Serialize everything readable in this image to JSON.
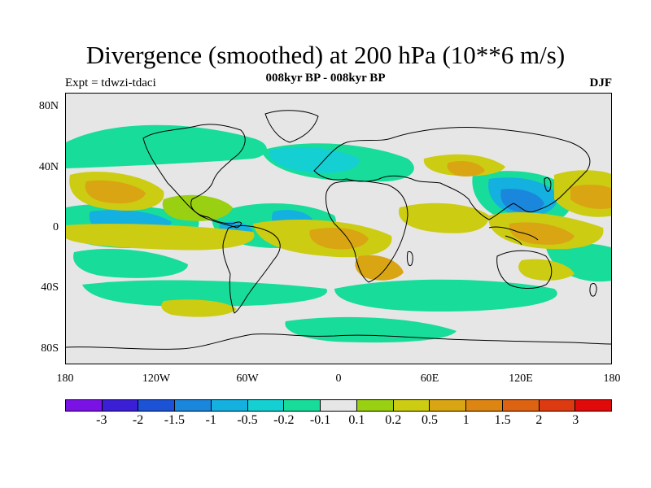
{
  "title": "Divergence (smoothed) at 200 hPa (10**6 m/s)",
  "subtitle": "008kyr BP - 008kyr BP",
  "expt": "Expt = tdwzi-tdaci",
  "season": "DJF",
  "map": {
    "lat_labels": [
      "80N",
      "40N",
      "0",
      "40S",
      "80S"
    ],
    "lon_labels": [
      "180",
      "120W",
      "60W",
      "0",
      "60E",
      "120E",
      "180"
    ],
    "background_color": "#e6e6e6",
    "coast_color": "#000000"
  },
  "colorbar": {
    "colors": [
      "#7a12e6",
      "#3a1fd6",
      "#1b52d6",
      "#1b87dc",
      "#14b0e0",
      "#14d0d2",
      "#18dc9a",
      "#e6e6e6",
      "#9ad012",
      "#cccc12",
      "#d9a512",
      "#dc8512",
      "#dd6212",
      "#de3a12",
      "#e10a0a"
    ],
    "labels": [
      "-3",
      "-2",
      "-1.5",
      "-1",
      "-0.5",
      "-0.2",
      "-0.1",
      "0.1",
      "0.2",
      "0.5",
      "1",
      "1.5",
      "2",
      "3"
    ]
  }
}
